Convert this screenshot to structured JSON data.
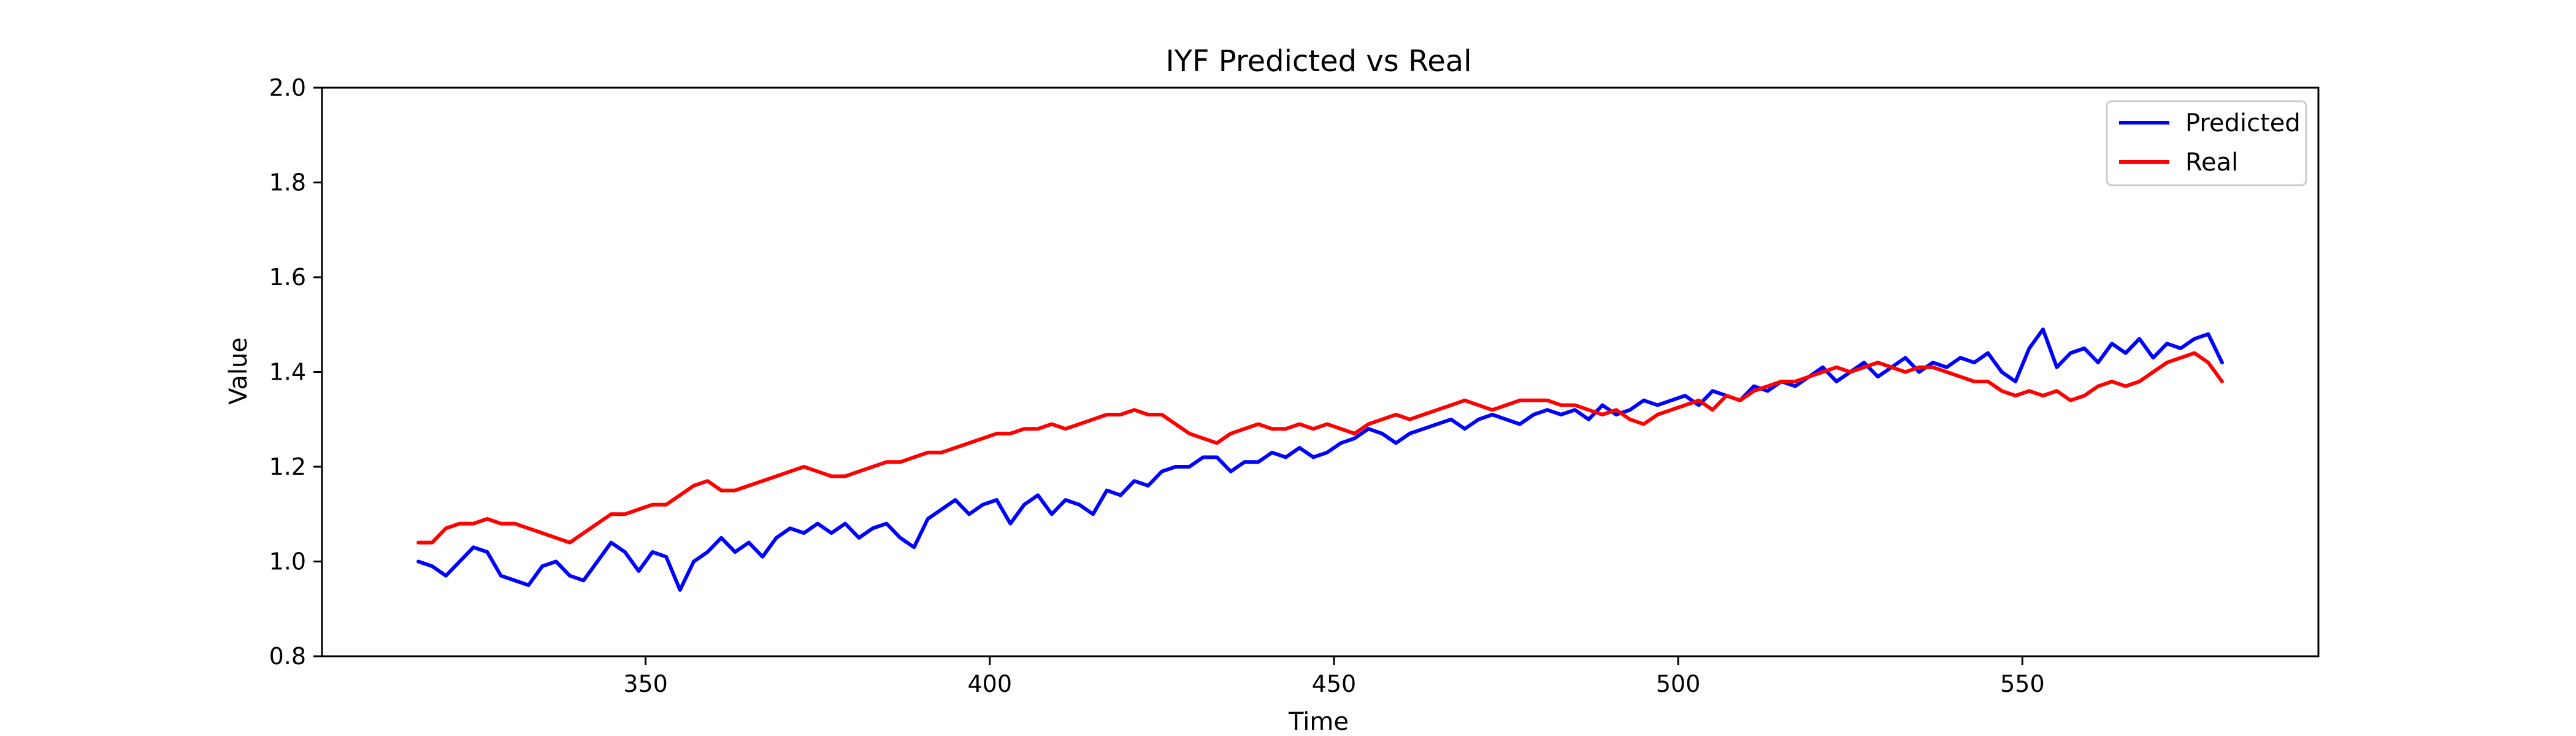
{
  "chart_data": {
    "type": "line",
    "title": "IYF Predicted vs Real",
    "xlabel": "Time",
    "ylabel": "Value",
    "xlim": [
      303,
      593
    ],
    "ylim": [
      0.8,
      2.0
    ],
    "xticks": [
      350,
      400,
      450,
      500,
      550
    ],
    "xtick_labels": [
      "350",
      "400",
      "450",
      "500",
      "550"
    ],
    "yticks": [
      0.8,
      1.0,
      1.2,
      1.4,
      1.6,
      1.8,
      2.0
    ],
    "ytick_labels": [
      "0.8",
      "1.0",
      "1.2",
      "1.4",
      "1.6",
      "1.8",
      "2.0"
    ],
    "grid": false,
    "legend_position": "upper right",
    "x": [
      317,
      319,
      321,
      323,
      325,
      327,
      329,
      331,
      333,
      335,
      337,
      339,
      341,
      343,
      345,
      347,
      349,
      351,
      353,
      355,
      357,
      359,
      361,
      363,
      365,
      367,
      369,
      371,
      373,
      375,
      377,
      379,
      381,
      383,
      385,
      387,
      389,
      391,
      393,
      395,
      397,
      399,
      401,
      403,
      405,
      407,
      409,
      411,
      413,
      415,
      417,
      419,
      421,
      423,
      425,
      427,
      429,
      431,
      433,
      435,
      437,
      439,
      441,
      443,
      445,
      447,
      449,
      451,
      453,
      455,
      457,
      459,
      461,
      463,
      465,
      467,
      469,
      471,
      473,
      475,
      477,
      479,
      481,
      483,
      485,
      487,
      489,
      491,
      493,
      495,
      497,
      499,
      501,
      503,
      505,
      507,
      509,
      511,
      513,
      515,
      517,
      519,
      521,
      523,
      525,
      527,
      529,
      531,
      533,
      535,
      537,
      539,
      541,
      543,
      545,
      547,
      549,
      551,
      553,
      555,
      557,
      559,
      561,
      563,
      565,
      567,
      569,
      571,
      573,
      575,
      577,
      579
    ],
    "series": [
      {
        "name": "Predicted",
        "color": "#0000ff",
        "values": [
          1.0,
          0.99,
          0.97,
          1.0,
          1.03,
          1.02,
          0.97,
          0.96,
          0.95,
          0.99,
          1.0,
          0.97,
          0.96,
          1.0,
          1.04,
          1.02,
          0.98,
          1.02,
          1.01,
          0.94,
          1.0,
          1.02,
          1.05,
          1.02,
          1.04,
          1.01,
          1.05,
          1.07,
          1.06,
          1.08,
          1.06,
          1.08,
          1.05,
          1.07,
          1.08,
          1.05,
          1.03,
          1.09,
          1.11,
          1.13,
          1.1,
          1.12,
          1.13,
          1.08,
          1.12,
          1.14,
          1.1,
          1.13,
          1.12,
          1.1,
          1.15,
          1.14,
          1.17,
          1.16,
          1.19,
          1.2,
          1.2,
          1.22,
          1.22,
          1.19,
          1.21,
          1.21,
          1.23,
          1.22,
          1.24,
          1.22,
          1.23,
          1.25,
          1.26,
          1.28,
          1.27,
          1.25,
          1.27,
          1.28,
          1.29,
          1.3,
          1.28,
          1.3,
          1.31,
          1.3,
          1.29,
          1.31,
          1.32,
          1.31,
          1.32,
          1.3,
          1.33,
          1.31,
          1.32,
          1.34,
          1.33,
          1.34,
          1.35,
          1.33,
          1.36,
          1.35,
          1.34,
          1.37,
          1.36,
          1.38,
          1.37,
          1.39,
          1.41,
          1.38,
          1.4,
          1.42,
          1.39,
          1.41,
          1.43,
          1.4,
          1.42,
          1.41,
          1.43,
          1.42,
          1.44,
          1.4,
          1.38,
          1.45,
          1.49,
          1.41,
          1.44,
          1.45,
          1.42,
          1.46,
          1.44,
          1.47,
          1.43,
          1.46,
          1.45,
          1.47,
          1.48,
          1.42
        ]
      },
      {
        "name": "Real",
        "color": "#ff0000",
        "values": [
          1.04,
          1.04,
          1.07,
          1.08,
          1.08,
          1.09,
          1.08,
          1.08,
          1.07,
          1.06,
          1.05,
          1.04,
          1.06,
          1.08,
          1.1,
          1.1,
          1.11,
          1.12,
          1.12,
          1.14,
          1.16,
          1.17,
          1.15,
          1.15,
          1.16,
          1.17,
          1.18,
          1.19,
          1.2,
          1.19,
          1.18,
          1.18,
          1.19,
          1.2,
          1.21,
          1.21,
          1.22,
          1.23,
          1.23,
          1.24,
          1.25,
          1.26,
          1.27,
          1.27,
          1.28,
          1.28,
          1.29,
          1.28,
          1.29,
          1.3,
          1.31,
          1.31,
          1.32,
          1.31,
          1.31,
          1.29,
          1.27,
          1.26,
          1.25,
          1.27,
          1.28,
          1.29,
          1.28,
          1.28,
          1.29,
          1.28,
          1.29,
          1.28,
          1.27,
          1.29,
          1.3,
          1.31,
          1.3,
          1.31,
          1.32,
          1.33,
          1.34,
          1.33,
          1.32,
          1.33,
          1.34,
          1.34,
          1.34,
          1.33,
          1.33,
          1.32,
          1.31,
          1.32,
          1.3,
          1.29,
          1.31,
          1.32,
          1.33,
          1.34,
          1.32,
          1.35,
          1.34,
          1.36,
          1.37,
          1.38,
          1.38,
          1.39,
          1.4,
          1.41,
          1.4,
          1.41,
          1.42,
          1.41,
          1.4,
          1.41,
          1.41,
          1.4,
          1.39,
          1.38,
          1.38,
          1.36,
          1.35,
          1.36,
          1.35,
          1.36,
          1.34,
          1.35,
          1.37,
          1.38,
          1.37,
          1.38,
          1.4,
          1.42,
          1.43,
          1.44,
          1.42,
          1.38
        ]
      }
    ]
  }
}
